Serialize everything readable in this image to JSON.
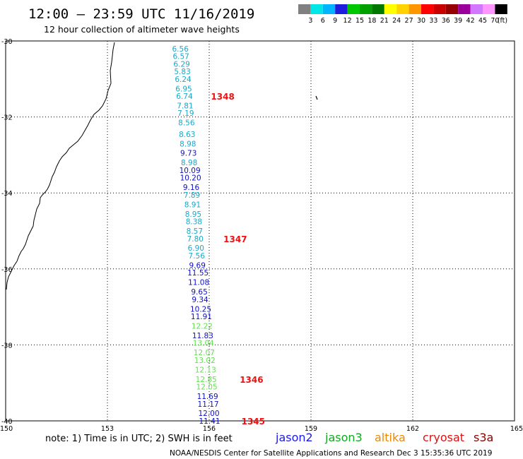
{
  "header": {
    "title": "12:00 – 23:59 UTC 11/16/2019",
    "subtitle": "12 hour collection of altimeter wave heights"
  },
  "legend": {
    "unit": "(ft)",
    "bins": [
      {
        "label": "",
        "color": "#808080"
      },
      {
        "label": "3",
        "color": "#00e6e6"
      },
      {
        "label": "6",
        "color": "#00b4ff"
      },
      {
        "label": "9",
        "color": "#1e1edc"
      },
      {
        "label": "12",
        "color": "#00c800"
      },
      {
        "label": "15",
        "color": "#00a000"
      },
      {
        "label": "18",
        "color": "#007800"
      },
      {
        "label": "21",
        "color": "#ffff00"
      },
      {
        "label": "24",
        "color": "#ffd200"
      },
      {
        "label": "27",
        "color": "#ff9600"
      },
      {
        "label": "30",
        "color": "#ff0000"
      },
      {
        "label": "33",
        "color": "#c80000"
      },
      {
        "label": "36",
        "color": "#960000"
      },
      {
        "label": "39",
        "color": "#9b009b"
      },
      {
        "label": "42",
        "color": "#d278ff"
      },
      {
        "label": "45",
        "color": "#ff96ff"
      },
      {
        "label": "70",
        "color": "#000000"
      }
    ]
  },
  "axes": {
    "lat_labels": [
      "-30",
      "-32",
      "-34",
      "-36",
      "-38",
      "-40"
    ],
    "lon_labels": [
      "150",
      "153",
      "156",
      "159",
      "162",
      "165"
    ]
  },
  "colors": {
    "cyan": "#1aa8c8",
    "blue": "#1010c0",
    "green": "#66dd55",
    "red": "#ee1111"
  },
  "readings": [
    {
      "value": "6.56",
      "lat": -30.2,
      "lon": 155.15,
      "c": "cyan"
    },
    {
      "value": "6.57",
      "lat": -30.4,
      "lon": 155.17,
      "c": "cyan"
    },
    {
      "value": "6.29",
      "lat": -30.6,
      "lon": 155.19,
      "c": "cyan"
    },
    {
      "value": "5.83",
      "lat": -30.8,
      "lon": 155.21,
      "c": "cyan"
    },
    {
      "value": "6.24",
      "lat": -31.0,
      "lon": 155.23,
      "c": "cyan"
    },
    {
      "value": "6.95",
      "lat": -31.25,
      "lon": 155.25,
      "c": "cyan"
    },
    {
      "value": "6.74",
      "lat": -31.45,
      "lon": 155.27,
      "c": "cyan"
    },
    {
      "value": "7.81",
      "lat": -31.7,
      "lon": 155.29,
      "c": "cyan"
    },
    {
      "value": "7.19",
      "lat": -31.9,
      "lon": 155.31,
      "c": "cyan"
    },
    {
      "value": "8.56",
      "lat": -32.15,
      "lon": 155.33,
      "c": "cyan"
    },
    {
      "value": "8.63",
      "lat": -32.45,
      "lon": 155.35,
      "c": "cyan"
    },
    {
      "value": "8.98",
      "lat": -32.7,
      "lon": 155.37,
      "c": "cyan"
    },
    {
      "value": "9.73",
      "lat": -32.95,
      "lon": 155.39,
      "c": "blue"
    },
    {
      "value": "8.98",
      "lat": -33.2,
      "lon": 155.41,
      "c": "cyan"
    },
    {
      "value": "10.09",
      "lat": -33.4,
      "lon": 155.43,
      "c": "blue"
    },
    {
      "value": "10.20",
      "lat": -33.6,
      "lon": 155.45,
      "c": "blue"
    },
    {
      "value": "9.16",
      "lat": -33.85,
      "lon": 155.47,
      "c": "blue"
    },
    {
      "value": "7.89",
      "lat": -34.05,
      "lon": 155.49,
      "c": "cyan"
    },
    {
      "value": "8.91",
      "lat": -34.3,
      "lon": 155.51,
      "c": "cyan"
    },
    {
      "value": "8.95",
      "lat": -34.55,
      "lon": 155.53,
      "c": "cyan"
    },
    {
      "value": "8.38",
      "lat": -34.75,
      "lon": 155.55,
      "c": "cyan"
    },
    {
      "value": "8.57",
      "lat": -35.0,
      "lon": 155.57,
      "c": "cyan"
    },
    {
      "value": "7.80",
      "lat": -35.2,
      "lon": 155.59,
      "c": "cyan"
    },
    {
      "value": "6.90",
      "lat": -35.45,
      "lon": 155.61,
      "c": "cyan"
    },
    {
      "value": "7.56",
      "lat": -35.65,
      "lon": 155.63,
      "c": "cyan"
    },
    {
      "value": "9.69",
      "lat": -35.9,
      "lon": 155.65,
      "c": "blue"
    },
    {
      "value": "11.55",
      "lat": -36.1,
      "lon": 155.67,
      "c": "blue"
    },
    {
      "value": "11.08",
      "lat": -36.35,
      "lon": 155.69,
      "c": "blue"
    },
    {
      "value": "9.65",
      "lat": -36.6,
      "lon": 155.71,
      "c": "blue"
    },
    {
      "value": "9.34",
      "lat": -36.8,
      "lon": 155.73,
      "c": "blue"
    },
    {
      "value": "10.25",
      "lat": -37.05,
      "lon": 155.75,
      "c": "blue"
    },
    {
      "value": "11.91",
      "lat": -37.25,
      "lon": 155.77,
      "c": "blue"
    },
    {
      "value": "12.22",
      "lat": -37.5,
      "lon": 155.79,
      "c": "green"
    },
    {
      "value": "11.83",
      "lat": -37.75,
      "lon": 155.81,
      "c": "blue"
    },
    {
      "value": "13.04",
      "lat": -37.95,
      "lon": 155.83,
      "c": "green"
    },
    {
      "value": "12.07",
      "lat": -38.2,
      "lon": 155.85,
      "c": "green"
    },
    {
      "value": "13.02",
      "lat": -38.4,
      "lon": 155.87,
      "c": "green"
    },
    {
      "value": "12.13",
      "lat": -38.65,
      "lon": 155.89,
      "c": "green"
    },
    {
      "value": "12.85",
      "lat": -38.9,
      "lon": 155.91,
      "c": "green"
    },
    {
      "value": "12.05",
      "lat": -39.1,
      "lon": 155.93,
      "c": "green"
    },
    {
      "value": "11.69",
      "lat": -39.35,
      "lon": 155.95,
      "c": "blue"
    },
    {
      "value": "11.17",
      "lat": -39.55,
      "lon": 155.97,
      "c": "blue"
    },
    {
      "value": "12.00",
      "lat": -39.8,
      "lon": 155.99,
      "c": "blue"
    },
    {
      "value": "11.41",
      "lat": -40.0,
      "lon": 156.01,
      "c": "blue"
    }
  ],
  "time_labels": [
    {
      "value": "1348",
      "lat": -31.45,
      "lon": 156.05
    },
    {
      "value": "1347",
      "lat": -35.2,
      "lon": 156.42
    },
    {
      "value": "1346",
      "lat": -38.9,
      "lon": 156.9
    },
    {
      "value": "1345",
      "lat": -40.0,
      "lon": 156.95
    }
  ],
  "note": "note:  1) Time is in UTC; 2) SWH is in feet",
  "satellites": [
    {
      "name": "jason2",
      "color": "#1a1aee"
    },
    {
      "name": "jason3",
      "color": "#11aa22"
    },
    {
      "name": "altika",
      "color": "#ee8800"
    },
    {
      "name": "cryosat",
      "color": "#dd1111"
    },
    {
      "name": "s3a",
      "color": "#880000"
    }
  ],
  "footer": "NOAA/NESDIS Center for Satellite Applications and Research    Dec  3 15:35:36 UTC 2019"
}
